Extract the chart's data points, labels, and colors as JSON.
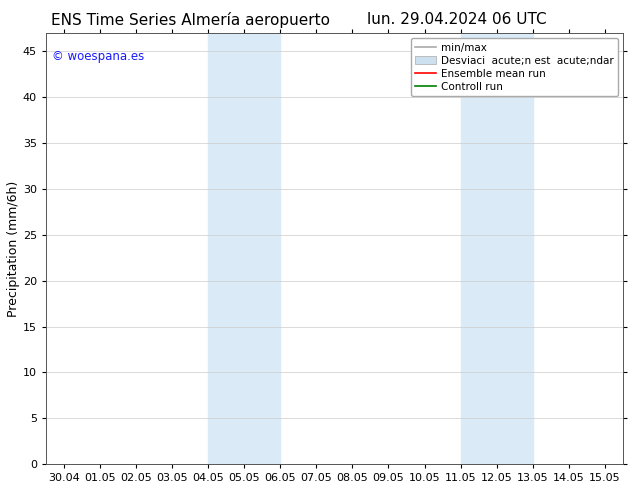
{
  "title_left": "ENS Time Series Almería aeropuerto",
  "title_right": "lun. 29.04.2024 06 UTC",
  "ylabel": "Precipitation (mm/6h)",
  "watermark": "© woespana.es",
  "watermark_color": "#1a1aff",
  "background_color": "#ffffff",
  "plot_bg_color": "#ffffff",
  "ylim": [
    0,
    47
  ],
  "yticks": [
    0,
    5,
    10,
    15,
    20,
    25,
    30,
    35,
    40,
    45
  ],
  "x_labels": [
    "30.04",
    "01.05",
    "02.05",
    "03.05",
    "04.05",
    "05.05",
    "06.05",
    "07.05",
    "08.05",
    "09.05",
    "10.05",
    "11.05",
    "12.05",
    "13.05",
    "14.05",
    "15.05"
  ],
  "shade_bands": [
    {
      "start_label": "04.05",
      "end_label": "06.05"
    },
    {
      "start_label": "11.05",
      "end_label": "13.05"
    }
  ],
  "shade_color": "#daeaf7",
  "legend_label_minmax": "min/max",
  "legend_label_std": "Desviaci  acute;n est  acute;ndar",
  "legend_label_mean": "Ensemble mean run",
  "legend_label_ctrl": "Controll run",
  "color_minmax": "#aaaaaa",
  "color_std": "#cce0f0",
  "color_mean": "#ff0000",
  "color_ctrl": "#008000",
  "title_fontsize": 11,
  "axis_fontsize": 9,
  "tick_fontsize": 8,
  "legend_fontsize": 7.5
}
